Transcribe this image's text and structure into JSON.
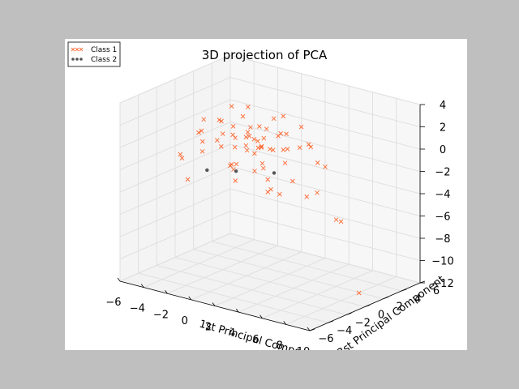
{
  "chart_data": {
    "type": "scatter",
    "title": "3D projection of PCA",
    "xlabel": "1st Principal Component",
    "ylabel": "2st Principal Component",
    "zlabel": "",
    "xlim": [
      -6,
      10
    ],
    "ylim": [
      -6,
      6
    ],
    "zlim": [
      -12,
      4
    ],
    "xticks": [
      "−6",
      "−4",
      "−2",
      "0",
      "2",
      "4",
      "6",
      "8",
      "10"
    ],
    "yticks": [
      "−6",
      "−4",
      "−2",
      "0",
      "2",
      "4",
      "6"
    ],
    "zticks": [
      "−12",
      "−10",
      "−8",
      "−6",
      "−4",
      "−2",
      "0",
      "2",
      "4"
    ],
    "grid": true,
    "legend": "top-left",
    "series": [
      {
        "name": "Class 1",
        "marker": "x",
        "color": "#ff4500",
        "points": [
          [
            0.2,
            0.6,
            0.1
          ],
          [
            -0.5,
            1.1,
            0.8
          ],
          [
            1.0,
            -0.4,
            -0.6
          ],
          [
            0.4,
            0.9,
            1.2
          ],
          [
            -1.2,
            0.3,
            -0.9
          ],
          [
            1.6,
            1.4,
            0.5
          ],
          [
            0.9,
            -1.0,
            1.5
          ],
          [
            -0.3,
            -0.7,
            -1.8
          ],
          [
            2.1,
            0.2,
            -0.2
          ],
          [
            -1.8,
            0.9,
            0.6
          ],
          [
            0.6,
            1.8,
            -1.1
          ],
          [
            1.3,
            -1.6,
            0.2
          ],
          [
            -0.9,
            -1.4,
            1.0
          ],
          [
            0.0,
            2.2,
            0.4
          ],
          [
            2.6,
            1.0,
            1.1
          ],
          [
            -2.3,
            -0.2,
            -0.4
          ],
          [
            1.9,
            -0.6,
            -1.6
          ],
          [
            -0.6,
            0.4,
            2.0
          ],
          [
            0.3,
            -2.0,
            -1.2
          ],
          [
            3.0,
            0.6,
            0.0
          ],
          [
            -2.9,
            0.8,
            0.9
          ],
          [
            1.1,
            2.6,
            1.7
          ],
          [
            -1.5,
            1.9,
            -1.4
          ],
          [
            2.4,
            -1.8,
            0.8
          ],
          [
            0.7,
            0.0,
            -2.4
          ],
          [
            -0.1,
            -2.6,
            0.5
          ],
          [
            3.5,
            -0.3,
            -0.8
          ],
          [
            -3.4,
            -0.8,
            0.2
          ],
          [
            1.7,
            0.8,
            2.3
          ],
          [
            -1.0,
            -0.1,
            -2.7
          ],
          [
            4.1,
            1.5,
            0.4
          ],
          [
            -4.0,
            0.4,
            -1.2
          ],
          [
            2.8,
            2.2,
            -0.5
          ],
          [
            -2.0,
            -2.2,
            -0.6
          ],
          [
            0.5,
            3.1,
            -0.2
          ],
          [
            4.6,
            -0.9,
            -1.9
          ],
          [
            -4.6,
            1.3,
            0.3
          ],
          [
            3.2,
            -2.5,
            1.3
          ],
          [
            -3.1,
            2.4,
            1.5
          ],
          [
            1.4,
            -3.0,
            -2.0
          ],
          [
            5.2,
            0.3,
            0.9
          ],
          [
            -5.1,
            -0.6,
            -2.3
          ],
          [
            2.0,
            3.4,
            0.7
          ],
          [
            -1.3,
            -3.2,
            1.8
          ],
          [
            5.8,
            1.1,
            -1.0
          ],
          [
            -5.5,
            0.1,
            -3.0
          ],
          [
            3.9,
            -1.4,
            -3.1
          ],
          [
            0.8,
            1.3,
            -3.6
          ],
          [
            6.4,
            -0.5,
            0.1
          ],
          [
            -0.4,
            0.7,
            2.8
          ],
          [
            1.5,
            0.4,
            -4.2
          ],
          [
            -2.6,
            1.6,
            -3.4
          ],
          [
            4.4,
            0.9,
            -4.0
          ],
          [
            6.9,
            -1.2,
            -2.2
          ],
          [
            7.6,
            0.5,
            -5.2
          ],
          [
            8.2,
            -0.8,
            -4.4
          ],
          [
            2.3,
            -0.3,
            -3.5
          ],
          [
            -3.7,
            -1.6,
            -3.8
          ],
          [
            0.1,
            0.2,
            0.5
          ],
          [
            0.9,
            0.5,
            -0.3
          ],
          [
            -0.7,
            -0.3,
            0.3
          ],
          [
            1.4,
            0.1,
            0.7
          ],
          [
            -1.6,
            0.6,
            0.0
          ],
          [
            2.2,
            -1.1,
            -0.9
          ],
          [
            0.6,
            -0.8,
            0.9
          ],
          [
            -0.2,
            1.5,
            -0.5
          ],
          [
            1.8,
            1.7,
            -0.8
          ],
          [
            -2.1,
            0.0,
            1.3
          ],
          [
            9.5,
            0.0,
            -10.9
          ]
        ]
      },
      {
        "name": "Class 2",
        "marker": "o",
        "color": "#555555",
        "points": [
          [
            -0.4,
            -0.6,
            -2.5
          ],
          [
            2.5,
            -0.2,
            -2.0
          ],
          [
            -3.0,
            -0.4,
            -3.2
          ]
        ]
      }
    ]
  }
}
